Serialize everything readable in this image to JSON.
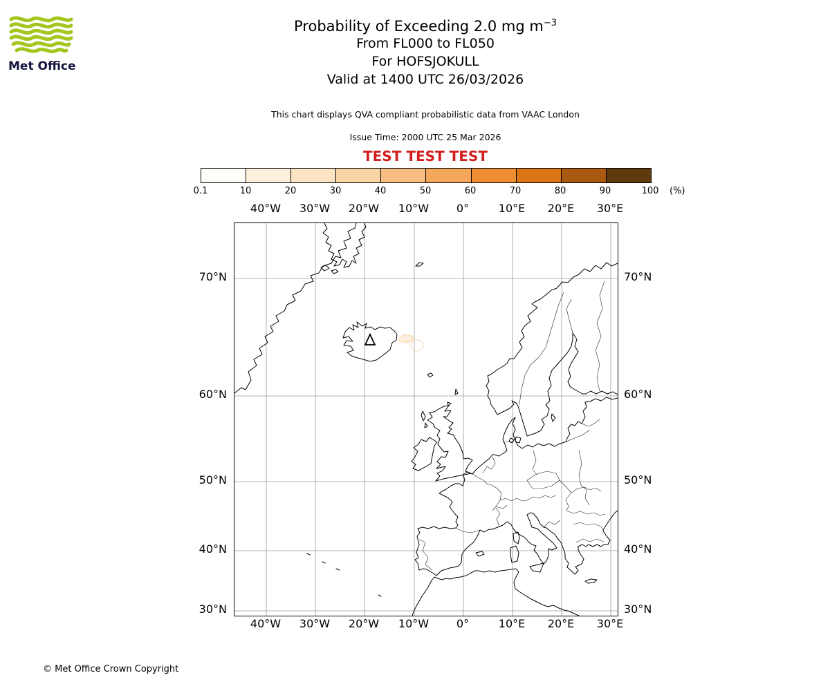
{
  "header": {
    "logo_text": "Met Office",
    "title_main": "Probability of Exceeding 2.0 mg m",
    "title_sup": "−3",
    "subtitle1": "From FL000 to FL050",
    "subtitle2": "For HOFSJOKULL",
    "subtitle3": "Valid at 1400 UTC 26/03/2026",
    "description": "This chart displays QVA compliant probabilistic data from VAAC London",
    "issue_time": "Issue Time: 2000 UTC 25 Mar 2026",
    "test_banner": "TEST TEST TEST",
    "test_color": "#d21e1e"
  },
  "legend": {
    "ticks": [
      "0.1",
      "10",
      "20",
      "30",
      "40",
      "50",
      "60",
      "70",
      "80",
      "90",
      "100"
    ],
    "unit": "(%)",
    "colors": [
      "#fffef9",
      "#fdf1de",
      "#fbe3c3",
      "#f9d4a5",
      "#f7be82",
      "#f5a75c",
      "#ef8d33",
      "#da7614",
      "#a95a10",
      "#5e3a0d"
    ]
  },
  "map": {
    "lon_labels": [
      "40°W",
      "30°W",
      "20°W",
      "10°W",
      "0°",
      "10°E",
      "20°E",
      "30°E"
    ],
    "lat_labels": [
      "70°N",
      "60°N",
      "50°N",
      "40°N",
      "30°N"
    ],
    "volcano_icon": "volcano-triangle"
  },
  "footer": {
    "copyright": "© Met Office Crown Copyright"
  }
}
